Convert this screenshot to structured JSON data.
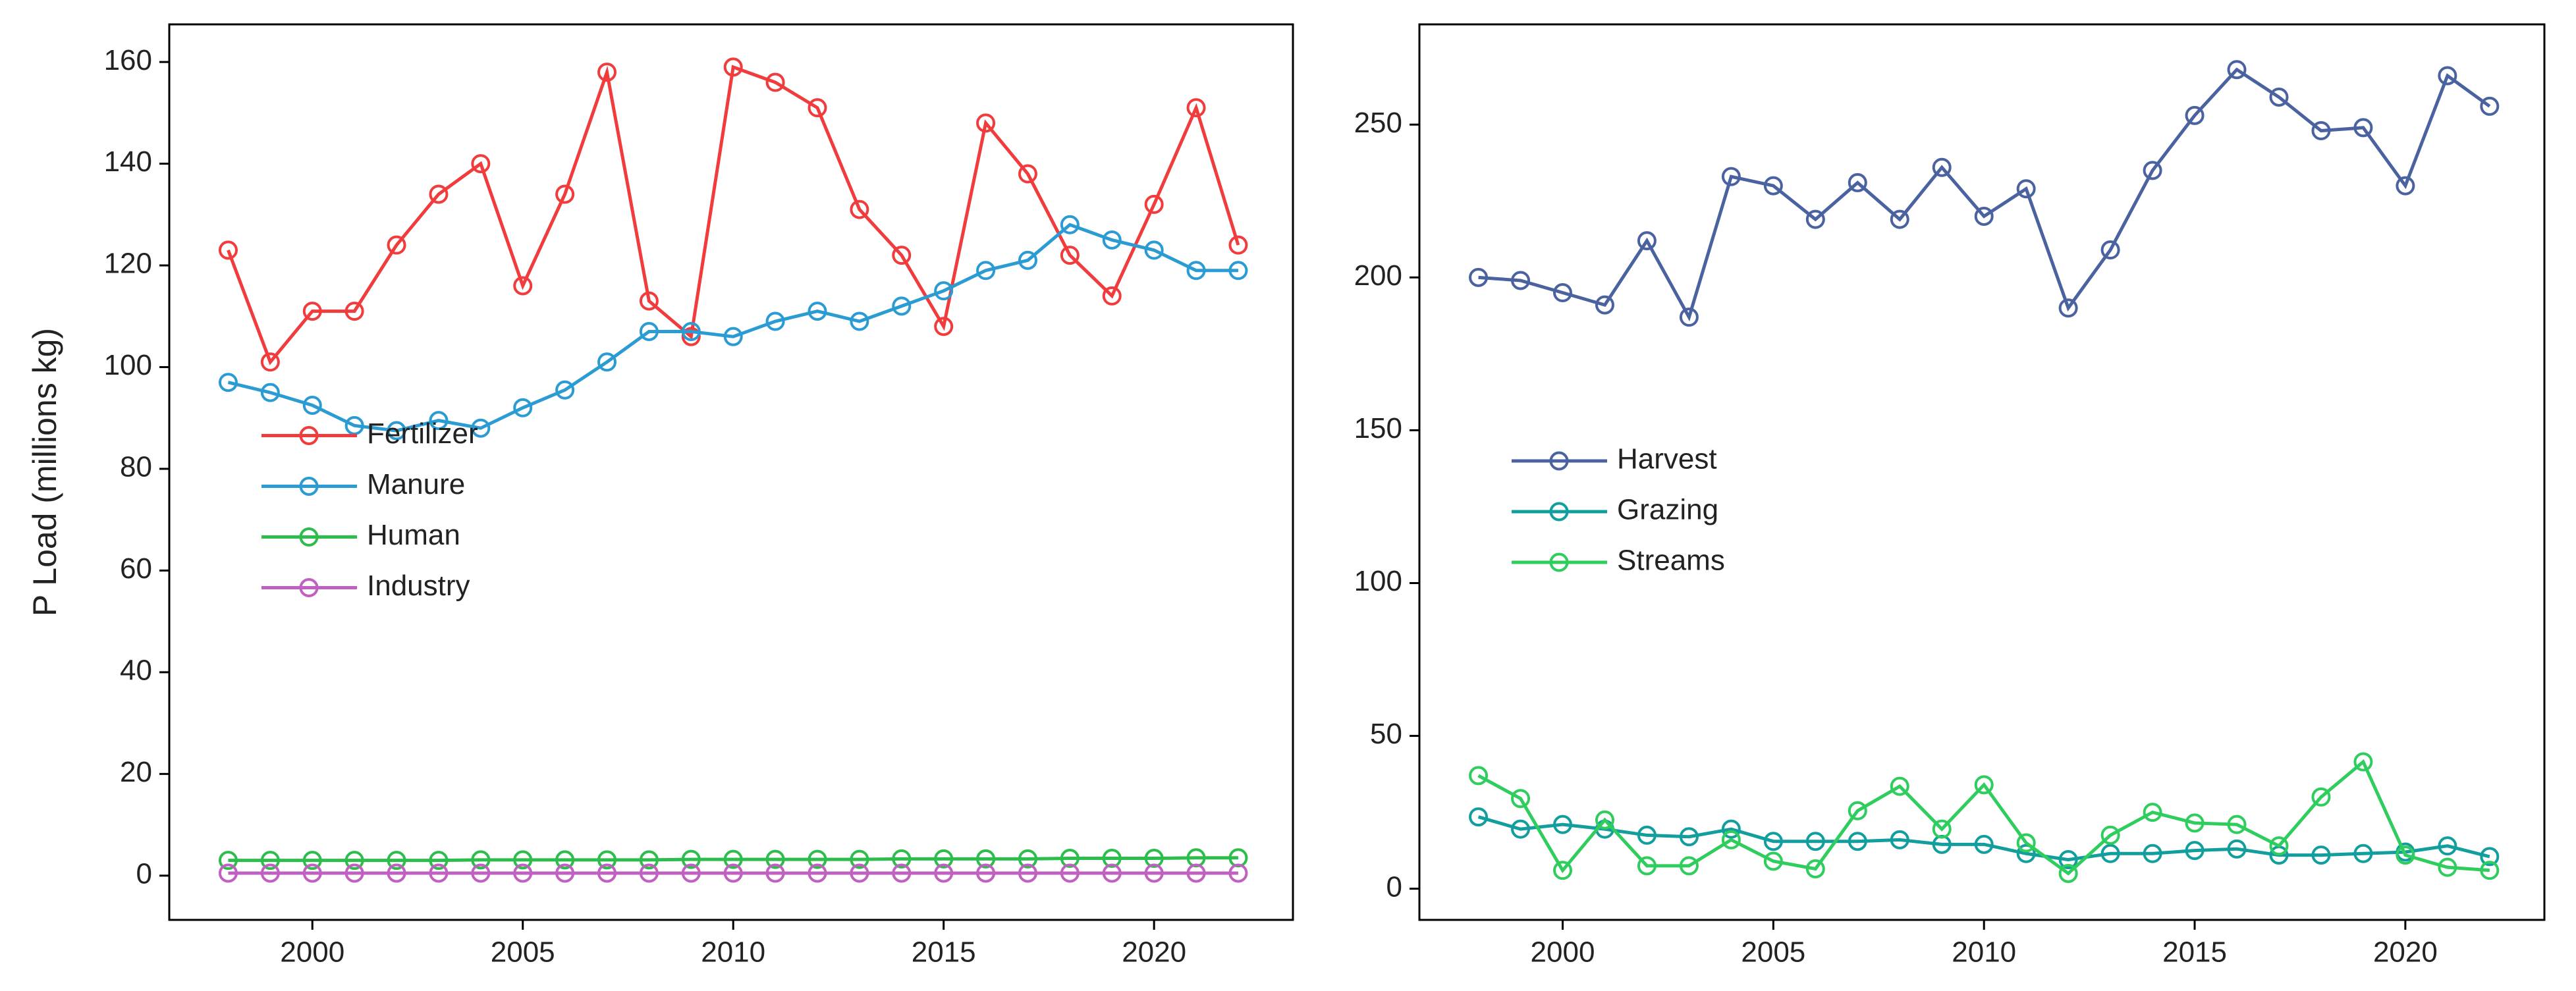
{
  "chart_data": [
    {
      "type": "line",
      "ylabel": "P Load (millions kg)",
      "x": [
        1998,
        1999,
        2000,
        2001,
        2002,
        2003,
        2004,
        2005,
        2006,
        2007,
        2008,
        2009,
        2010,
        2011,
        2012,
        2013,
        2014,
        2015,
        2016,
        2017,
        2018,
        2019,
        2020,
        2021,
        2022
      ],
      "series": [
        {
          "name": "Fertilizer",
          "color": "#f03c3c",
          "values": [
            123,
            101,
            111,
            111,
            124,
            134,
            140,
            116,
            134,
            158,
            113,
            106,
            159,
            156,
            151,
            131,
            122,
            108,
            148,
            138,
            122,
            114,
            132,
            151,
            124
          ]
        },
        {
          "name": "Manure",
          "color": "#2b9bd3",
          "values": [
            97,
            95,
            92.5,
            88.5,
            87.5,
            89.5,
            88,
            92,
            95.5,
            101,
            107,
            107,
            106,
            109,
            111,
            109,
            112,
            115,
            119,
            121,
            128,
            125,
            123,
            119,
            119
          ]
        },
        {
          "name": "Human",
          "color": "#2dbd4d",
          "values": [
            3,
            3,
            3,
            3,
            3,
            3,
            3.1,
            3.1,
            3.1,
            3.1,
            3.1,
            3.2,
            3.2,
            3.2,
            3.2,
            3.2,
            3.3,
            3.3,
            3.3,
            3.3,
            3.4,
            3.4,
            3.4,
            3.5,
            3.5
          ]
        },
        {
          "name": "Industry",
          "color": "#c060c0",
          "values": [
            0.5,
            0.5,
            0.5,
            0.5,
            0.5,
            0.5,
            0.5,
            0.5,
            0.5,
            0.5,
            0.5,
            0.5,
            0.5,
            0.5,
            0.5,
            0.5,
            0.5,
            0.5,
            0.5,
            0.5,
            0.5,
            0.5,
            0.5,
            0.5,
            0.5
          ]
        }
      ],
      "xlim": [
        1996.6,
        2023.3
      ],
      "xticks": [
        2000,
        2005,
        2010,
        2015,
        2020
      ],
      "ylim": [
        -8.7,
        167.4
      ],
      "yticks": [
        0,
        20,
        40,
        60,
        80,
        100,
        120,
        140,
        160
      ],
      "legend": "center left"
    },
    {
      "type": "line",
      "x": [
        1998,
        1999,
        2000,
        2001,
        2002,
        2003,
        2004,
        2005,
        2006,
        2007,
        2008,
        2009,
        2010,
        2011,
        2012,
        2013,
        2014,
        2015,
        2016,
        2017,
        2018,
        2019,
        2020,
        2021,
        2022
      ],
      "series": [
        {
          "name": "Harvest",
          "color": "#4a62a0",
          "values": [
            200,
            199,
            195,
            191,
            212,
            187,
            233,
            230,
            219,
            231,
            219,
            236,
            220,
            229,
            190,
            209,
            235,
            253,
            268,
            259,
            248,
            249,
            230,
            266,
            256
          ]
        },
        {
          "name": "Grazing",
          "color": "#139e9e",
          "values": [
            23.5,
            19.5,
            21,
            19.5,
            17.5,
            17,
            19.5,
            15.5,
            15.5,
            15.5,
            16,
            14.5,
            14.5,
            11.5,
            9.5,
            11.5,
            11.5,
            12.5,
            13,
            11,
            11,
            11.5,
            12,
            14,
            10.5
          ]
        },
        {
          "name": "Streams",
          "color": "#2fcc5e",
          "values": [
            37,
            29.5,
            6,
            22.5,
            7.5,
            7.5,
            16,
            9,
            6.5,
            25.5,
            33.5,
            19.5,
            34,
            15,
            5,
            17.5,
            25,
            21.5,
            21,
            14,
            30,
            41.5,
            11,
            7,
            6
          ]
        }
      ],
      "xlim": [
        1996.6,
        2023.3
      ],
      "xticks": [
        2000,
        2005,
        2010,
        2015,
        2020
      ],
      "ylim": [
        -10.2,
        282.8
      ],
      "yticks": [
        0,
        50,
        100,
        150,
        200,
        250
      ],
      "legend": "center left"
    }
  ]
}
